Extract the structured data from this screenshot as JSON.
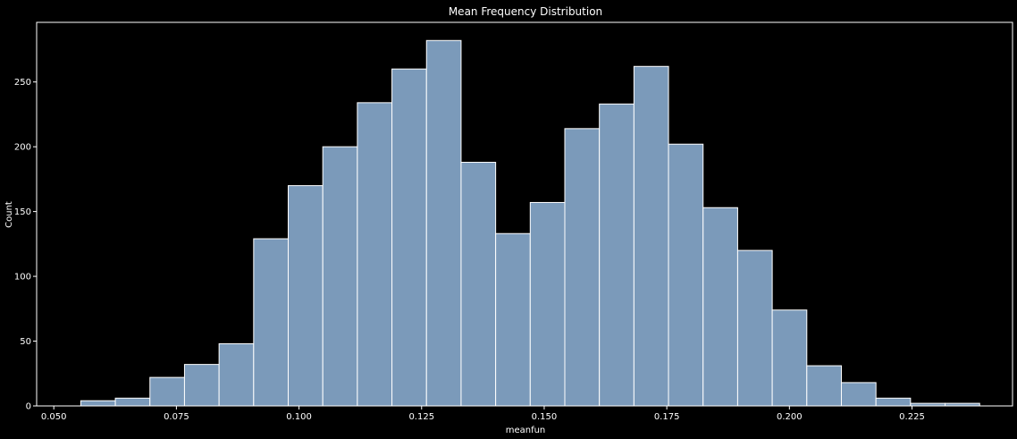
{
  "chart_data": {
    "type": "bar",
    "title": "Mean Frequency Distribution",
    "xlabel": "meanfun",
    "ylabel": "Count",
    "xlim": [
      0.0465,
      0.2455
    ],
    "ylim": [
      0,
      296
    ],
    "xticks": [
      0.05,
      0.075,
      0.1,
      0.125,
      0.15,
      0.175,
      0.2,
      0.225
    ],
    "xtick_labels": [
      "0.050",
      "0.075",
      "0.100",
      "0.125",
      "0.150",
      "0.175",
      "0.200",
      "0.225"
    ],
    "yticks": [
      0,
      50,
      100,
      150,
      200,
      250
    ],
    "ytick_labels": [
      "0",
      "50",
      "100",
      "150",
      "200",
      "250"
    ],
    "bin_start": 0.0555,
    "bin_width": 0.00705,
    "values": [
      4,
      6,
      22,
      32,
      48,
      129,
      170,
      200,
      234,
      260,
      282,
      188,
      133,
      157,
      214,
      233,
      262,
      202,
      153,
      120,
      74,
      31,
      18,
      6,
      2,
      2
    ],
    "grid": false,
    "bar_color": "#7b9aba",
    "edge_color": "#ffffff",
    "background": "#000000"
  }
}
